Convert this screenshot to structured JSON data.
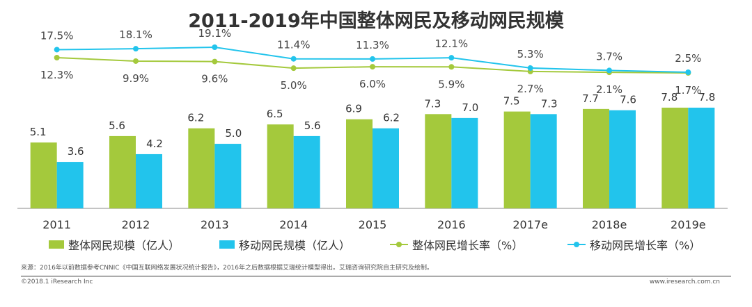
{
  "chart_data": {
    "type": "bar",
    "title": "2011-2019年中国整体网民及移动网民规模",
    "categories": [
      "2011",
      "2012",
      "2013",
      "2014",
      "2015",
      "2016",
      "2017e",
      "2018e",
      "2019e"
    ],
    "series": [
      {
        "name": "整体网民规模（亿人）",
        "kind": "bar",
        "color": "#a4c93c",
        "values": [
          5.1,
          5.6,
          6.2,
          6.5,
          6.9,
          7.3,
          7.5,
          7.7,
          7.8
        ],
        "labels": [
          "5.1",
          "5.6",
          "6.2",
          "6.5",
          "6.9",
          "7.3",
          "7.5",
          "7.7",
          "7.8"
        ]
      },
      {
        "name": "移动网民规模（亿人）",
        "kind": "bar",
        "color": "#22c4ec",
        "values": [
          3.6,
          4.2,
          5.0,
          5.6,
          6.2,
          7.0,
          7.3,
          7.6,
          7.8
        ],
        "labels": [
          "3.6",
          "4.2",
          "5.0",
          "5.6",
          "6.2",
          "7.0",
          "7.3",
          "7.6",
          "7.8"
        ]
      },
      {
        "name": "整体网民增长率（%）",
        "kind": "line",
        "color": "#a4c93c",
        "values": [
          12.3,
          9.9,
          9.6,
          5.0,
          6.0,
          5.9,
          2.7,
          2.1,
          1.7
        ],
        "labels": [
          "12.3%",
          "9.9%",
          "9.6%",
          "5.0%",
          "6.0%",
          "5.9%",
          "2.7%",
          "2.1%",
          "1.7%"
        ]
      },
      {
        "name": "移动网民增长率（%）",
        "kind": "line",
        "color": "#22c4ec",
        "values": [
          17.5,
          18.1,
          19.1,
          11.4,
          11.3,
          12.1,
          5.3,
          3.7,
          2.5
        ],
        "labels": [
          "17.5%",
          "18.1%",
          "19.1%",
          "11.4%",
          "11.3%",
          "12.1%",
          "5.3%",
          "3.7%",
          "2.5%"
        ]
      }
    ],
    "bar_axis": {
      "min": 0,
      "max": 10
    },
    "line_axis": {
      "min": 0,
      "max": 20
    },
    "xlabel": "",
    "ylabel": "",
    "grid": false,
    "legend": "bottom"
  },
  "source": "来源：2016年以前数据参考CNNIC《中国互联网络发展状况统计报告》，2016年之后数据根据艾瑞统计模型得出。艾瑞咨询研究院自主研究及绘制。",
  "footer": {
    "copyright": "©2018.1 iResearch Inc",
    "website": "www.iresearch.com.cn"
  }
}
